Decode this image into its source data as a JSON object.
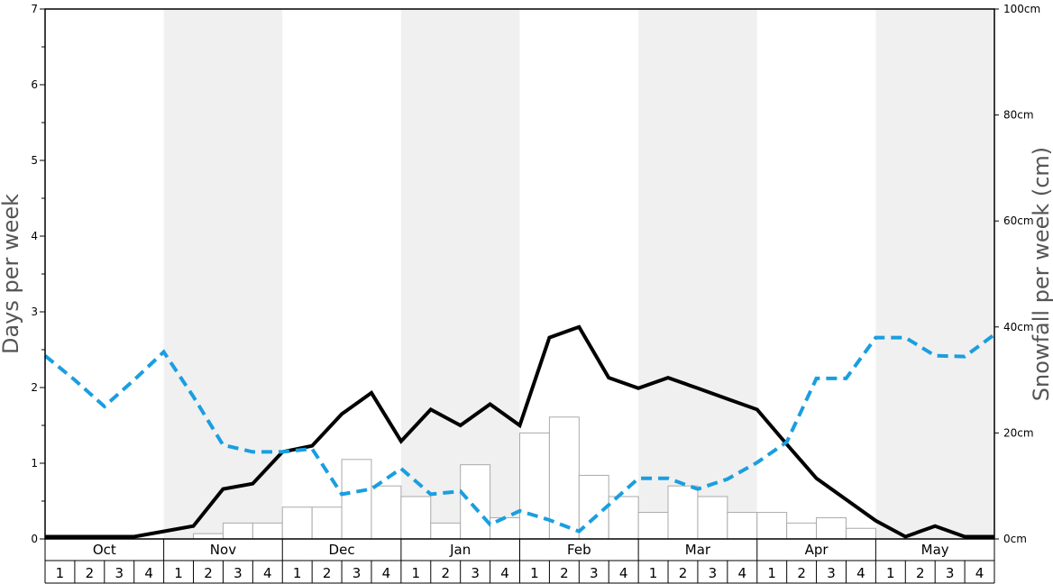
{
  "chart_data": {
    "type": "bar",
    "left_axis": {
      "label": "Days per week",
      "range": [
        0,
        7
      ],
      "major_ticks": [
        0,
        1,
        2,
        3,
        4,
        5,
        6,
        7
      ],
      "minor_step": 0.5
    },
    "right_axis": {
      "label": "Snowfall per week (cm)",
      "range": [
        0,
        100
      ],
      "ticks": [
        0,
        20,
        40,
        60,
        80,
        100
      ],
      "tick_labels": [
        "0cm",
        "20cm",
        "40cm",
        "60cm",
        "80cm",
        "100cm"
      ]
    },
    "months": [
      "Oct",
      "Nov",
      "Dec",
      "Jan",
      "Feb",
      "Mar",
      "Apr",
      "May"
    ],
    "weeks_per_month": [
      "1",
      "2",
      "3",
      "4"
    ],
    "shaded_months": [
      "Nov",
      "Jan",
      "Mar",
      "May"
    ],
    "colors": {
      "bar_fill": "#ffffff",
      "bar_stroke": "#aaaaaa",
      "black_line": "#000000",
      "blue_dashed_line": "#1a9ee0",
      "shading": "#f0f0f0"
    },
    "series": [
      {
        "axis": "right",
        "type": "bar",
        "values": [
          0,
          0,
          0,
          0,
          0,
          1,
          3,
          3,
          6,
          6,
          15,
          10,
          8,
          3,
          14,
          4,
          20,
          23,
          12,
          8,
          5,
          10,
          8,
          5,
          5,
          3,
          4,
          2,
          0,
          0,
          0,
          0
        ]
      },
      {
        "axis": "left",
        "type": "line",
        "style": "solid",
        "values": [
          0.03,
          0.03,
          0.03,
          0.03,
          0.1,
          0.17,
          0.66,
          0.73,
          1.15,
          1.23,
          1.65,
          1.93,
          1.29,
          1.71,
          1.5,
          1.78,
          1.5,
          2.66,
          2.8,
          2.13,
          1.99,
          2.13,
          1.99,
          1.85,
          1.71,
          1.25,
          0.8,
          0.52,
          0.24,
          0.03,
          0.17,
          0.03,
          0.03
        ]
      },
      {
        "axis": "left",
        "type": "line",
        "style": "dashed",
        "values": [
          2.42,
          2.1,
          1.75,
          2.1,
          2.47,
          1.88,
          1.24,
          1.15,
          1.15,
          1.19,
          0.59,
          0.66,
          0.93,
          0.59,
          0.63,
          0.19,
          0.37,
          0.25,
          0.1,
          0.45,
          0.8,
          0.8,
          0.66,
          0.79,
          1.01,
          1.28,
          2.12,
          2.12,
          2.66,
          2.66,
          2.42,
          2.41,
          2.7
        ]
      }
    ]
  }
}
